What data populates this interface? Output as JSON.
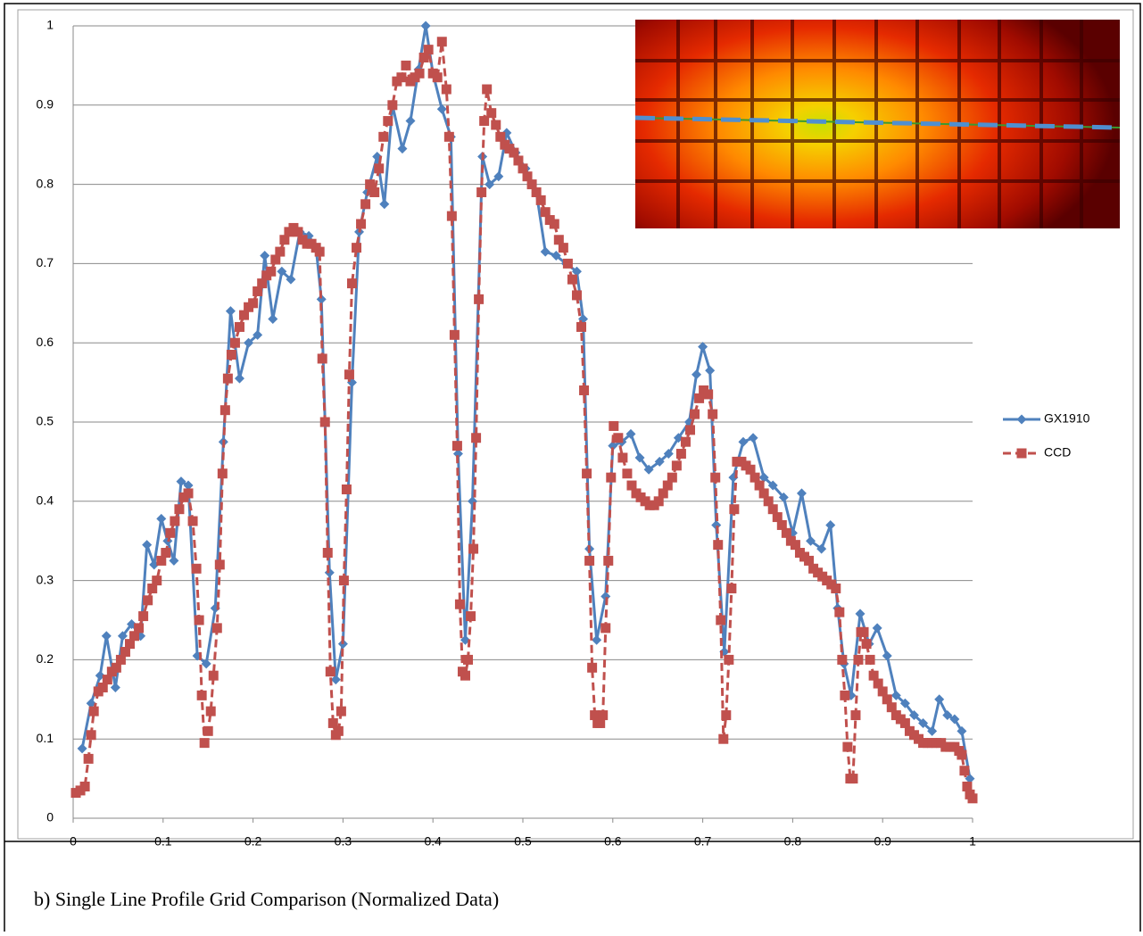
{
  "chart_data": {
    "type": "line",
    "caption": "b)  Single Line Profile Grid Comparison (Normalized Data)",
    "xlim": [
      0,
      1
    ],
    "ylim": [
      0,
      1
    ],
    "xticks": [
      0,
      0.1,
      0.2,
      0.3,
      0.4,
      0.5,
      0.6,
      0.7,
      0.8,
      0.9,
      1
    ],
    "yticks": [
      0,
      0.1,
      0.2,
      0.3,
      0.4,
      0.5,
      0.6,
      0.7,
      0.8,
      0.9,
      1
    ],
    "grid": true,
    "legend": "right",
    "series": [
      {
        "name": "GX1910",
        "color": "#4f81bd",
        "marker": "diamond",
        "dashed": false,
        "x": [
          0.01,
          0.02,
          0.03,
          0.037,
          0.047,
          0.055,
          0.065,
          0.075,
          0.082,
          0.09,
          0.098,
          0.105,
          0.112,
          0.12,
          0.128,
          0.138,
          0.148,
          0.158,
          0.167,
          0.175,
          0.185,
          0.195,
          0.205,
          0.213,
          0.222,
          0.232,
          0.242,
          0.252,
          0.262,
          0.27,
          0.276,
          0.285,
          0.292,
          0.3,
          0.31,
          0.318,
          0.327,
          0.338,
          0.346,
          0.355,
          0.366,
          0.375,
          0.384,
          0.392,
          0.4,
          0.41,
          0.42,
          0.428,
          0.436,
          0.444,
          0.455,
          0.463,
          0.473,
          0.482,
          0.492,
          0.503,
          0.515,
          0.525,
          0.537,
          0.548,
          0.56,
          0.567,
          0.574,
          0.582,
          0.592,
          0.6,
          0.61,
          0.62,
          0.63,
          0.64,
          0.652,
          0.662,
          0.673,
          0.685,
          0.693,
          0.7,
          0.708,
          0.715,
          0.724,
          0.734,
          0.745,
          0.756,
          0.768,
          0.778,
          0.79,
          0.8,
          0.81,
          0.82,
          0.832,
          0.842,
          0.85,
          0.857,
          0.865,
          0.875,
          0.885,
          0.894,
          0.905,
          0.915,
          0.925,
          0.935,
          0.945,
          0.955,
          0.963,
          0.972,
          0.98,
          0.988,
          0.997
        ],
        "values": [
          0.088,
          0.145,
          0.18,
          0.23,
          0.165,
          0.23,
          0.245,
          0.23,
          0.345,
          0.32,
          0.378,
          0.35,
          0.325,
          0.425,
          0.42,
          0.205,
          0.195,
          0.265,
          0.475,
          0.64,
          0.555,
          0.6,
          0.61,
          0.71,
          0.63,
          0.69,
          0.68,
          0.74,
          0.735,
          0.72,
          0.655,
          0.31,
          0.175,
          0.22,
          0.55,
          0.74,
          0.79,
          0.835,
          0.775,
          0.9,
          0.845,
          0.88,
          0.945,
          1.0,
          0.94,
          0.895,
          0.86,
          0.46,
          0.225,
          0.4,
          0.835,
          0.8,
          0.81,
          0.865,
          0.84,
          0.82,
          0.79,
          0.715,
          0.71,
          0.7,
          0.69,
          0.63,
          0.34,
          0.225,
          0.28,
          0.47,
          0.475,
          0.485,
          0.455,
          0.44,
          0.45,
          0.46,
          0.48,
          0.5,
          0.56,
          0.595,
          0.565,
          0.37,
          0.21,
          0.43,
          0.475,
          0.48,
          0.43,
          0.42,
          0.405,
          0.36,
          0.41,
          0.35,
          0.34,
          0.37,
          0.265,
          0.195,
          0.155,
          0.258,
          0.22,
          0.24,
          0.205,
          0.155,
          0.145,
          0.13,
          0.12,
          0.11,
          0.15,
          0.13,
          0.125,
          0.11,
          0.05
        ]
      },
      {
        "name": "CCD",
        "color": "#c0504d",
        "marker": "square",
        "dashed": true,
        "x": [
          0.003,
          0.008,
          0.013,
          0.017,
          0.02,
          0.023,
          0.028,
          0.033,
          0.038,
          0.043,
          0.048,
          0.053,
          0.058,
          0.063,
          0.068,
          0.073,
          0.078,
          0.083,
          0.088,
          0.093,
          0.098,
          0.103,
          0.108,
          0.113,
          0.118,
          0.123,
          0.128,
          0.133,
          0.137,
          0.14,
          0.143,
          0.146,
          0.15,
          0.153,
          0.156,
          0.16,
          0.163,
          0.166,
          0.169,
          0.172,
          0.176,
          0.18,
          0.185,
          0.19,
          0.195,
          0.2,
          0.205,
          0.21,
          0.215,
          0.22,
          0.225,
          0.23,
          0.235,
          0.24,
          0.245,
          0.25,
          0.255,
          0.26,
          0.265,
          0.27,
          0.274,
          0.277,
          0.28,
          0.283,
          0.286,
          0.289,
          0.292,
          0.295,
          0.298,
          0.301,
          0.304,
          0.307,
          0.31,
          0.315,
          0.32,
          0.325,
          0.33,
          0.335,
          0.34,
          0.345,
          0.35,
          0.355,
          0.36,
          0.365,
          0.37,
          0.375,
          0.38,
          0.385,
          0.39,
          0.395,
          0.4,
          0.405,
          0.41,
          0.415,
          0.418,
          0.421,
          0.424,
          0.427,
          0.43,
          0.433,
          0.436,
          0.439,
          0.442,
          0.445,
          0.448,
          0.451,
          0.454,
          0.457,
          0.46,
          0.465,
          0.47,
          0.475,
          0.48,
          0.485,
          0.49,
          0.495,
          0.5,
          0.505,
          0.51,
          0.515,
          0.52,
          0.525,
          0.53,
          0.535,
          0.54,
          0.545,
          0.55,
          0.555,
          0.56,
          0.565,
          0.568,
          0.571,
          0.574,
          0.577,
          0.58,
          0.583,
          0.586,
          0.589,
          0.592,
          0.595,
          0.598,
          0.601,
          0.606,
          0.611,
          0.616,
          0.621,
          0.626,
          0.631,
          0.636,
          0.641,
          0.646,
          0.651,
          0.656,
          0.661,
          0.666,
          0.671,
          0.676,
          0.681,
          0.686,
          0.691,
          0.696,
          0.701,
          0.706,
          0.711,
          0.714,
          0.717,
          0.72,
          0.723,
          0.726,
          0.729,
          0.732,
          0.735,
          0.738,
          0.743,
          0.748,
          0.753,
          0.758,
          0.763,
          0.768,
          0.773,
          0.778,
          0.783,
          0.788,
          0.793,
          0.798,
          0.803,
          0.808,
          0.813,
          0.818,
          0.823,
          0.828,
          0.833,
          0.838,
          0.843,
          0.848,
          0.852,
          0.855,
          0.858,
          0.861,
          0.864,
          0.867,
          0.87,
          0.873,
          0.876,
          0.879,
          0.882,
          0.886,
          0.89,
          0.895,
          0.9,
          0.905,
          0.91,
          0.915,
          0.92,
          0.925,
          0.93,
          0.935,
          0.94,
          0.945,
          0.95,
          0.955,
          0.96,
          0.965,
          0.97,
          0.975,
          0.98,
          0.985,
          0.988,
          0.991,
          0.994,
          0.997,
          1.0
        ],
        "values": [
          0.032,
          0.035,
          0.04,
          0.075,
          0.105,
          0.135,
          0.16,
          0.165,
          0.175,
          0.185,
          0.19,
          0.2,
          0.21,
          0.22,
          0.23,
          0.24,
          0.255,
          0.275,
          0.29,
          0.3,
          0.325,
          0.335,
          0.36,
          0.375,
          0.39,
          0.405,
          0.41,
          0.375,
          0.315,
          0.25,
          0.155,
          0.095,
          0.11,
          0.135,
          0.18,
          0.24,
          0.32,
          0.435,
          0.515,
          0.555,
          0.585,
          0.6,
          0.62,
          0.635,
          0.645,
          0.65,
          0.665,
          0.675,
          0.685,
          0.69,
          0.705,
          0.715,
          0.73,
          0.74,
          0.745,
          0.74,
          0.73,
          0.725,
          0.725,
          0.72,
          0.715,
          0.58,
          0.5,
          0.335,
          0.185,
          0.12,
          0.105,
          0.11,
          0.135,
          0.3,
          0.415,
          0.56,
          0.675,
          0.72,
          0.75,
          0.775,
          0.8,
          0.79,
          0.82,
          0.86,
          0.88,
          0.9,
          0.93,
          0.935,
          0.95,
          0.93,
          0.935,
          0.94,
          0.96,
          0.97,
          0.94,
          0.935,
          0.98,
          0.92,
          0.86,
          0.76,
          0.61,
          0.47,
          0.27,
          0.185,
          0.18,
          0.2,
          0.255,
          0.34,
          0.48,
          0.655,
          0.79,
          0.88,
          0.92,
          0.89,
          0.875,
          0.86,
          0.85,
          0.845,
          0.84,
          0.83,
          0.82,
          0.81,
          0.8,
          0.79,
          0.78,
          0.765,
          0.755,
          0.75,
          0.73,
          0.72,
          0.7,
          0.68,
          0.66,
          0.62,
          0.54,
          0.435,
          0.325,
          0.19,
          0.13,
          0.12,
          0.12,
          0.13,
          0.24,
          0.325,
          0.43,
          0.495,
          0.48,
          0.455,
          0.435,
          0.42,
          0.41,
          0.405,
          0.4,
          0.395,
          0.395,
          0.4,
          0.41,
          0.42,
          0.43,
          0.445,
          0.46,
          0.475,
          0.49,
          0.51,
          0.53,
          0.54,
          0.535,
          0.51,
          0.43,
          0.345,
          0.25,
          0.1,
          0.13,
          0.2,
          0.29,
          0.39,
          0.45,
          0.45,
          0.445,
          0.44,
          0.43,
          0.42,
          0.41,
          0.4,
          0.39,
          0.38,
          0.37,
          0.36,
          0.35,
          0.345,
          0.335,
          0.33,
          0.325,
          0.315,
          0.31,
          0.305,
          0.3,
          0.295,
          0.29,
          0.26,
          0.2,
          0.155,
          0.09,
          0.05,
          0.05,
          0.13,
          0.2,
          0.235,
          0.235,
          0.22,
          0.2,
          0.18,
          0.17,
          0.16,
          0.15,
          0.14,
          0.13,
          0.125,
          0.12,
          0.11,
          0.105,
          0.1,
          0.095,
          0.095,
          0.095,
          0.095,
          0.095,
          0.09,
          0.09,
          0.09,
          0.085,
          0.08,
          0.06,
          0.04,
          0.03,
          0.025
        ]
      }
    ]
  }
}
